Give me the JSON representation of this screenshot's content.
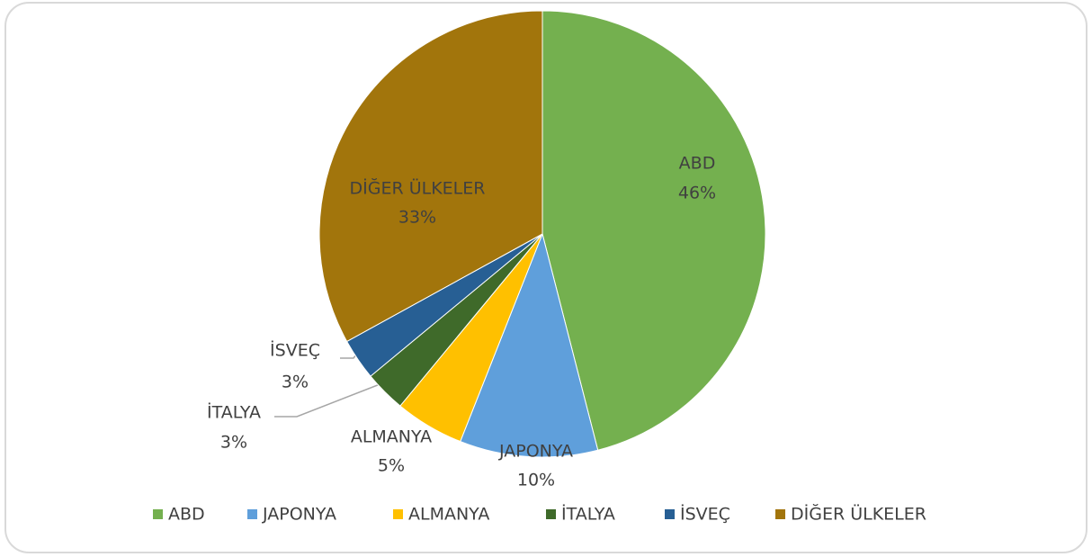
{
  "chart_data": {
    "type": "pie",
    "categories": [
      "ABD",
      "JAPONYA",
      "ALMANYA",
      "İTALYA",
      "İSVEÇ",
      "DİĞER ÜLKELER"
    ],
    "values": [
      46,
      10,
      5,
      3,
      3,
      33
    ],
    "value_labels": [
      "46%",
      "10%",
      "5%",
      "3%",
      "3%",
      "33%"
    ],
    "colors": [
      "#74b04f",
      "#5f9fdb",
      "#ffc000",
      "#3f6a2a",
      "#275f94",
      "#a2750c"
    ],
    "legend": "bottom"
  }
}
